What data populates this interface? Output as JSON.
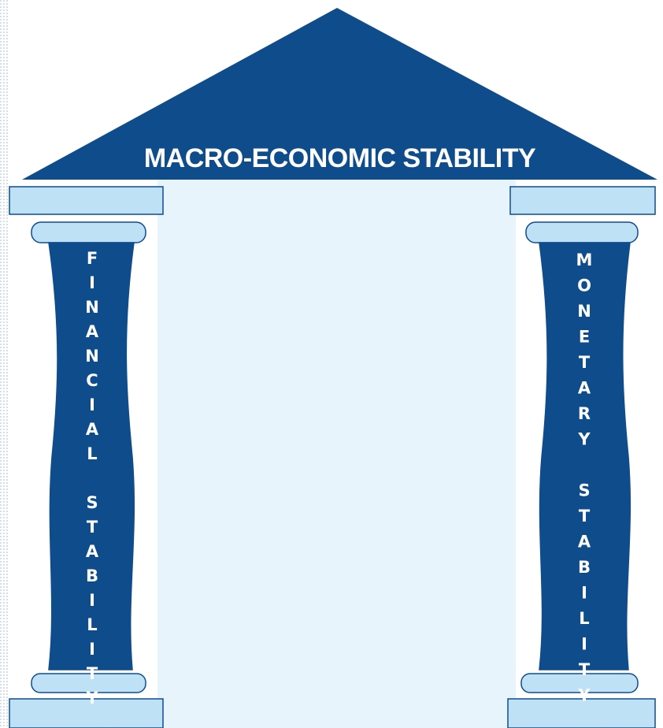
{
  "roof": {
    "label": "MACRO-ECONOMIC STABILITY"
  },
  "pillars": [
    {
      "label": "FINANCIAL STABILITY"
    },
    {
      "label": "MONETARY STABILITY"
    }
  ]
}
